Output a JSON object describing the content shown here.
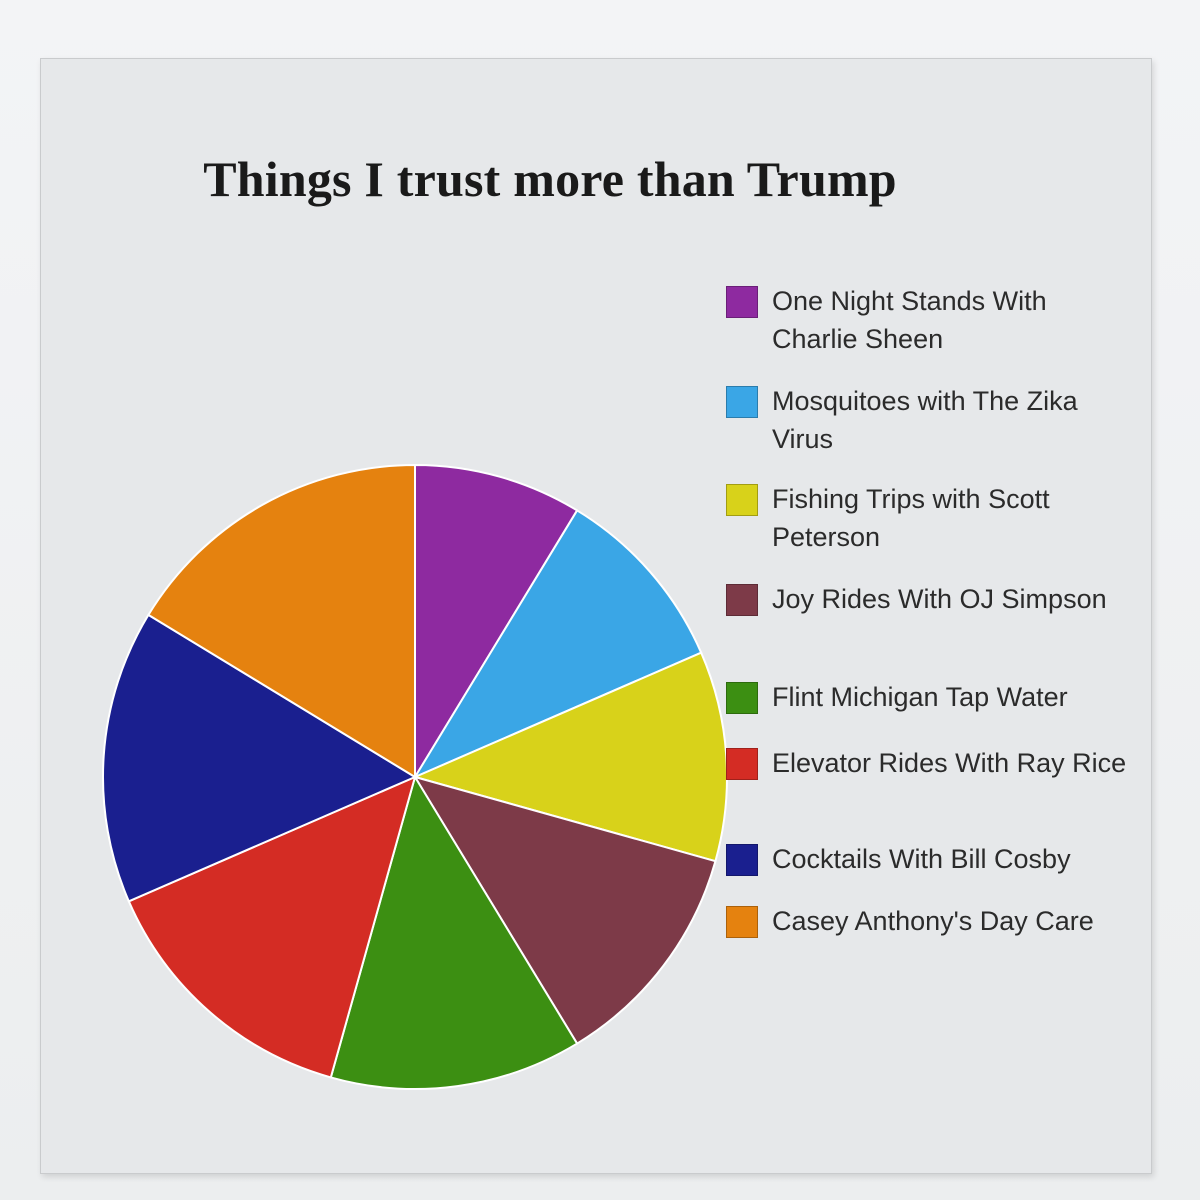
{
  "chart_data": {
    "type": "pie",
    "title": "Things I trust more than Trump",
    "legend_position": "right",
    "slices": [
      {
        "label": "One Night Stands With Charlie Sheen",
        "value": 8,
        "color": "#8e2aa0"
      },
      {
        "label": "Mosquitoes with The Zika Virus",
        "value": 9,
        "color": "#3aa6e6"
      },
      {
        "label": "Fishing Trips with Scott Peterson",
        "value": 10,
        "color": "#d8d21a"
      },
      {
        "label": "Joy Rides With OJ Simpson",
        "value": 11,
        "color": "#7d3a48"
      },
      {
        "label": "Flint Michigan Tap Water",
        "value": 12,
        "color": "#3c8f12"
      },
      {
        "label": "Elevator Rides With Ray Rice",
        "value": 13,
        "color": "#d42c24"
      },
      {
        "label": "Cocktails With Bill Cosby",
        "value": 14,
        "color": "#1a1f8f"
      },
      {
        "label": "Casey Anthony's Day Care",
        "value": 15,
        "color": "#e5820f"
      }
    ]
  }
}
